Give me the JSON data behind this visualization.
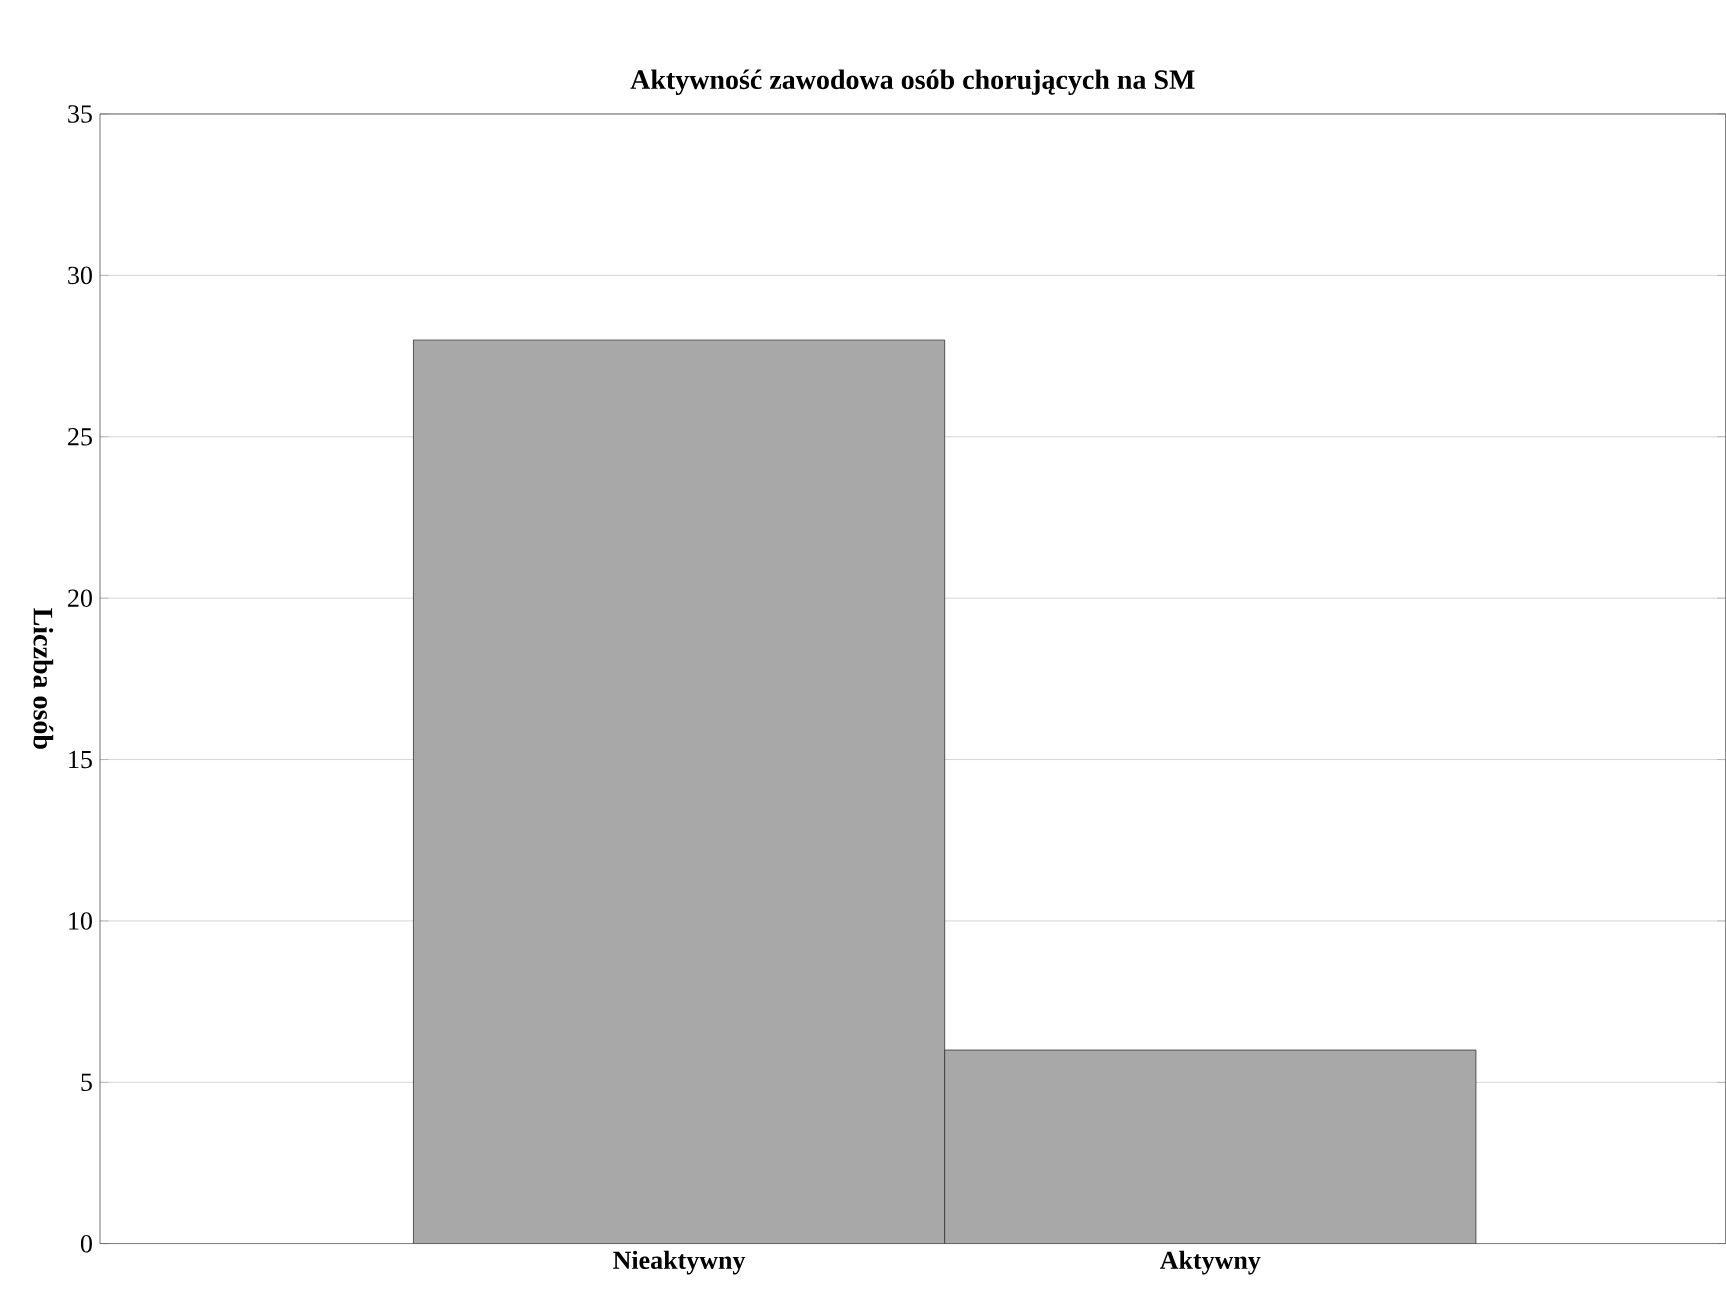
{
  "chart_data": {
    "type": "bar",
    "title": "Aktywność zawodowa osób chorujących na SM",
    "ylabel": "Liczba osób",
    "categories": [
      "Nieaktywny",
      "Aktywny"
    ],
    "values": [
      28,
      6
    ],
    "color": "#a8a8a8",
    "ylim": [
      0,
      35
    ],
    "yticks": [
      0,
      5,
      10,
      15,
      20,
      25,
      30,
      35
    ],
    "grid": "y"
  }
}
